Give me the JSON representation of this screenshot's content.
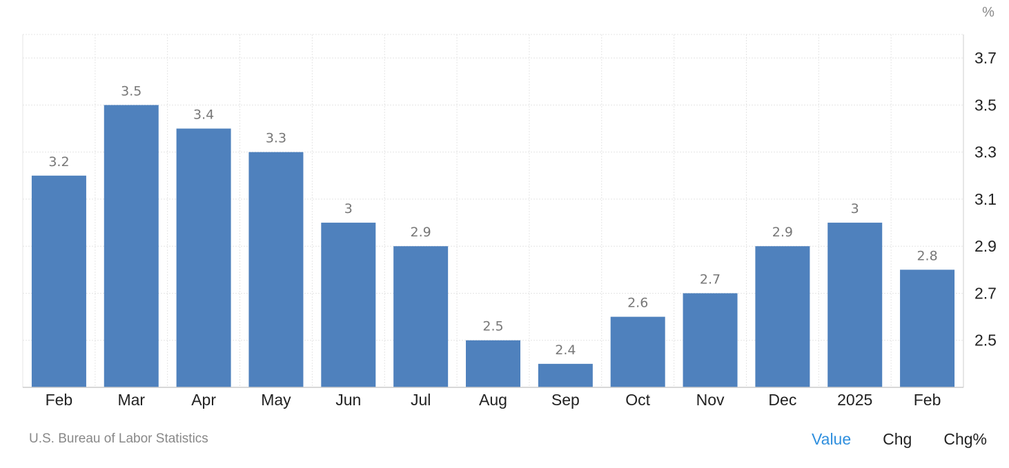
{
  "chart_data": {
    "type": "bar",
    "unit": "%",
    "categories": [
      "Feb",
      "Mar",
      "Apr",
      "May",
      "Jun",
      "Jul",
      "Aug",
      "Sep",
      "Oct",
      "Nov",
      "Dec",
      "2025",
      "Feb"
    ],
    "values": [
      3.2,
      3.5,
      3.4,
      3.3,
      3.0,
      2.9,
      2.5,
      2.4,
      2.6,
      2.7,
      2.9,
      3.0,
      2.8
    ],
    "value_labels": [
      "3.2",
      "3.5",
      "3.4",
      "3.3",
      "3",
      "2.9",
      "2.5",
      "2.4",
      "2.6",
      "2.7",
      "2.9",
      "3",
      "2.8"
    ],
    "y_ticks": [
      2.5,
      2.7,
      2.9,
      3.1,
      3.3,
      3.5,
      3.7
    ],
    "y_tick_labels": [
      "2.5",
      "2.7",
      "2.9",
      "3.1",
      "3.3",
      "3.5",
      "3.7"
    ],
    "ylim": [
      2.3,
      3.8
    ],
    "grid": true,
    "y_axis_position": "right",
    "bar_color": "#4f81bd"
  },
  "footer": {
    "source": "U.S. Bureau of Labor Statistics",
    "tabs": [
      {
        "label": "Value",
        "active": true
      },
      {
        "label": "Chg",
        "active": false
      },
      {
        "label": "Chg%",
        "active": false
      }
    ]
  },
  "colors": {
    "active_tab": "#2f8fde",
    "text": "#222222",
    "muted": "#888888",
    "grid": "#e4e4e4"
  }
}
